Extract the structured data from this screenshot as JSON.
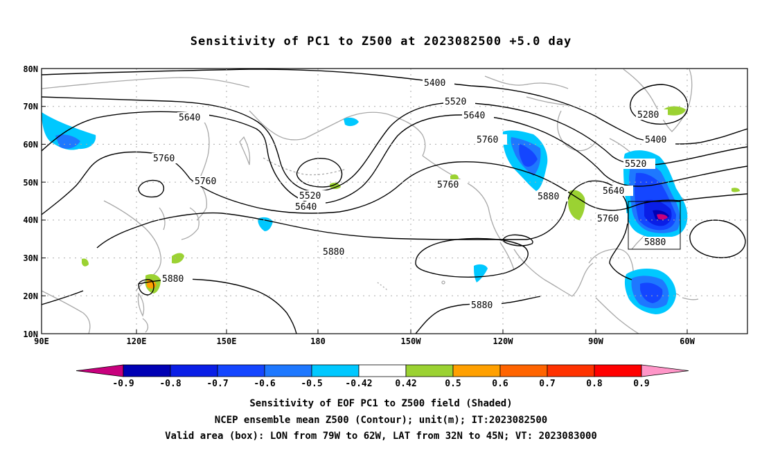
{
  "title": "Sensitivity of PC1 to Z500 at 2023082500 +5.0 day",
  "map": {
    "lat_labels": [
      "80N",
      "70N",
      "60N",
      "50N",
      "40N",
      "30N",
      "20N",
      "10N"
    ],
    "lon_labels": [
      "90E",
      "120E",
      "150E",
      "180",
      "150W",
      "120W",
      "90W",
      "60W"
    ],
    "contour_labels": {
      "c5400a": "5400",
      "c5400b": "5400",
      "c5520a": "5520",
      "c5520b": "5520",
      "c5520c": "5520",
      "c5640a": "5640",
      "c5640b": "5640",
      "c5640c": "5640",
      "c5640d": "5640",
      "c5760a": "5760",
      "c5760b": "5760",
      "c5760c": "5760",
      "c5760d": "5760",
      "c5760e": "5760",
      "c5880a": "5880",
      "c5880b": "5880",
      "c5880c": "5880",
      "c5880d": "5880",
      "c5880e": "5880",
      "c5280": "5280"
    }
  },
  "colorbar": {
    "labels": [
      "-0.9",
      "-0.8",
      "-0.7",
      "-0.6",
      "-0.5",
      "-0.42",
      "0.42",
      "0.5",
      "0.6",
      "0.7",
      "0.8",
      "0.9"
    ],
    "colors": [
      "#c8007d",
      "#0000b4",
      "#0a1ee6",
      "#1446ff",
      "#1e78ff",
      "#00c8ff",
      "#ffffff",
      "#9bd232",
      "#ffa000",
      "#ff6400",
      "#ff3200",
      "#ff0000",
      "#ff96c8"
    ]
  },
  "captions": {
    "line1": "Sensitivity of EOF PC1 to Z500 field (Shaded)",
    "line2": "NCEP ensemble mean Z500 (Contour); unit(m); IT:2023082500",
    "line3": "Valid area (box): LON from 79W to 62W, LAT from 32N to 45N; VT: 2023083000"
  }
}
